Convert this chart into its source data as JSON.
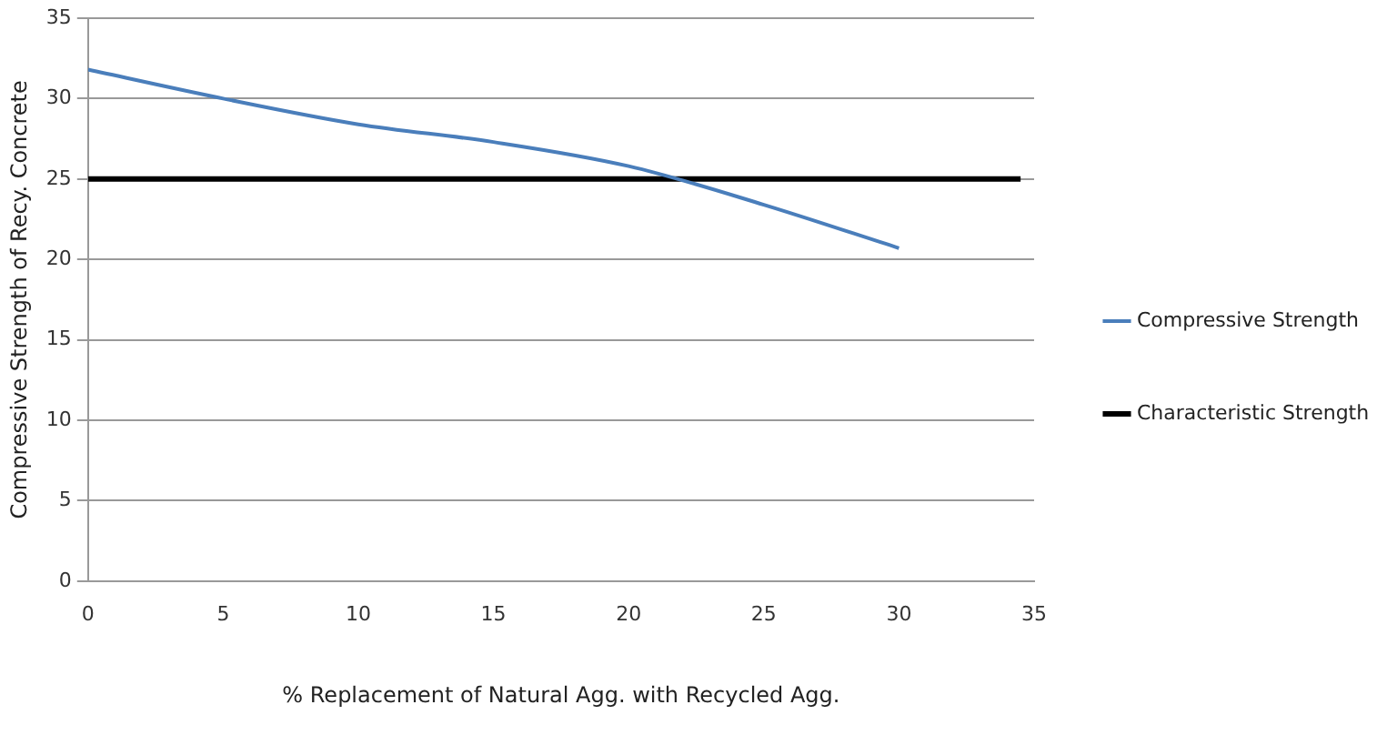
{
  "chart_data": {
    "type": "line",
    "xlabel": "% Replacement of Natural Agg. with Recycled Agg.",
    "ylabel": "Compressive Strength of Recy. Concrete",
    "xlim": [
      0,
      35
    ],
    "xticks": [
      0,
      5,
      10,
      15,
      20,
      25,
      30,
      35
    ],
    "ylim": [
      0,
      35
    ],
    "yticks": [
      0,
      5,
      10,
      15,
      20,
      25,
      30,
      35
    ],
    "grid": "y",
    "legend": "right",
    "marker": "none",
    "series": [
      {
        "name": "Compressive Strength",
        "color": "#4a7ebb",
        "x": [
          0,
          5,
          10,
          15,
          20,
          25,
          30
        ],
        "values": [
          31.8,
          30,
          28.4,
          27.3,
          25.8,
          23.4,
          20.7
        ]
      },
      {
        "name": "Characteristic Strength",
        "color": "#000000",
        "x": [
          0,
          34.5
        ],
        "values": [
          25,
          25
        ]
      }
    ]
  }
}
